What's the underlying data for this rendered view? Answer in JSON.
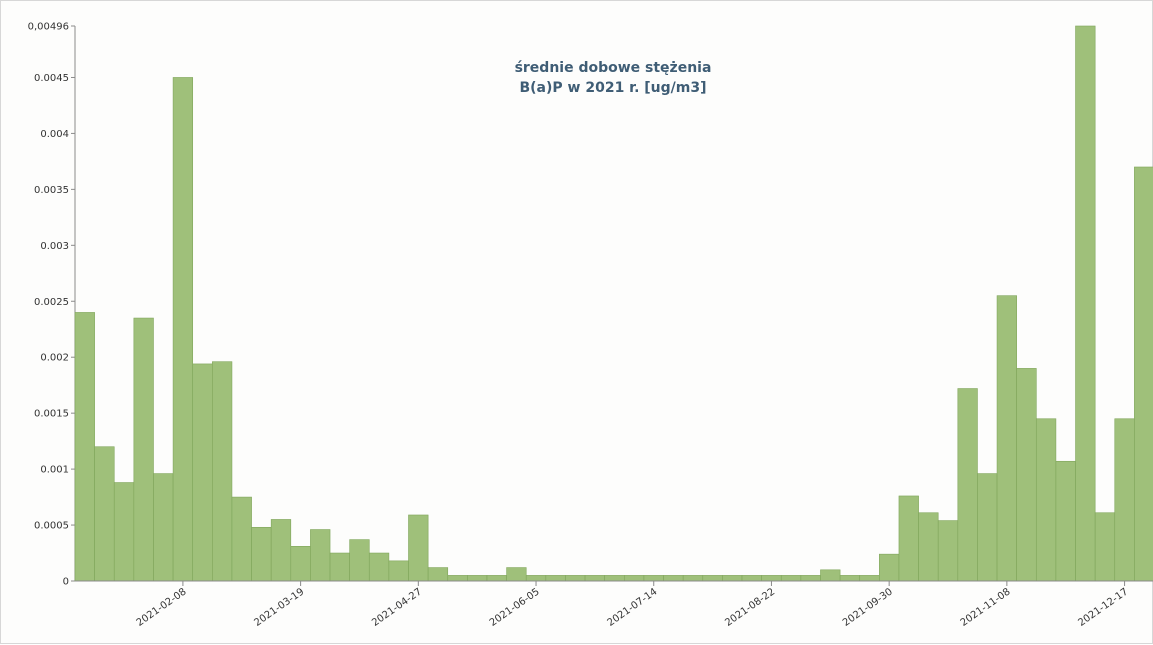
{
  "chart_data": {
    "type": "bar",
    "title_lines": [
      "średnie dobowe stężenia",
      "B(a)P w 2021 r. [ug/m3]"
    ],
    "xlabel": "",
    "ylabel": "",
    "ylim": [
      0,
      0.00496
    ],
    "y_ticks": [
      "0",
      "0.0005",
      "0.001",
      "0.0015",
      "0.002",
      "0.0025",
      "0.003",
      "0.0035",
      "0.004",
      "0.0045",
      "0,00496"
    ],
    "y_tick_values": [
      0,
      0.0005,
      0.001,
      0.0015,
      0.002,
      0.0025,
      0.003,
      0.0035,
      0.004,
      0.0045,
      0.00496
    ],
    "x_tick_labels": [
      "2021-02-08",
      "2021-03-19",
      "2021-04-27",
      "2021-06-05",
      "2021-07-14",
      "2021-08-22",
      "2021-09-30",
      "2021-11-08",
      "2021-12-17"
    ],
    "x_tick_bar_index": [
      5,
      11,
      17,
      23,
      29,
      35,
      41,
      47,
      53
    ],
    "values": [
      0.0024,
      0.0012,
      0.00088,
      0.00235,
      0.00096,
      0.0045,
      0.00194,
      0.00196,
      0.00075,
      0.00048,
      0.00055,
      0.00031,
      0.00046,
      0.00025,
      0.00037,
      0.00025,
      0.00018,
      0.00059,
      0.00012,
      5e-05,
      5e-05,
      5e-05,
      0.00012,
      5e-05,
      5e-05,
      5e-05,
      5e-05,
      5e-05,
      5e-05,
      5e-05,
      5e-05,
      5e-05,
      5e-05,
      5e-05,
      5e-05,
      5e-05,
      5e-05,
      5e-05,
      0.0001,
      5e-05,
      5e-05,
      0.00024,
      0.00076,
      0.00061,
      0.00054,
      0.00172,
      0.00096,
      0.00255,
      0.0019,
      0.00145,
      0.00107,
      0.00496,
      0.00061,
      0.00145,
      0.0037
    ],
    "bar_color": "#9fc07a",
    "bar_edge_color": "#7fa55a",
    "grid": false,
    "legend": "none"
  }
}
